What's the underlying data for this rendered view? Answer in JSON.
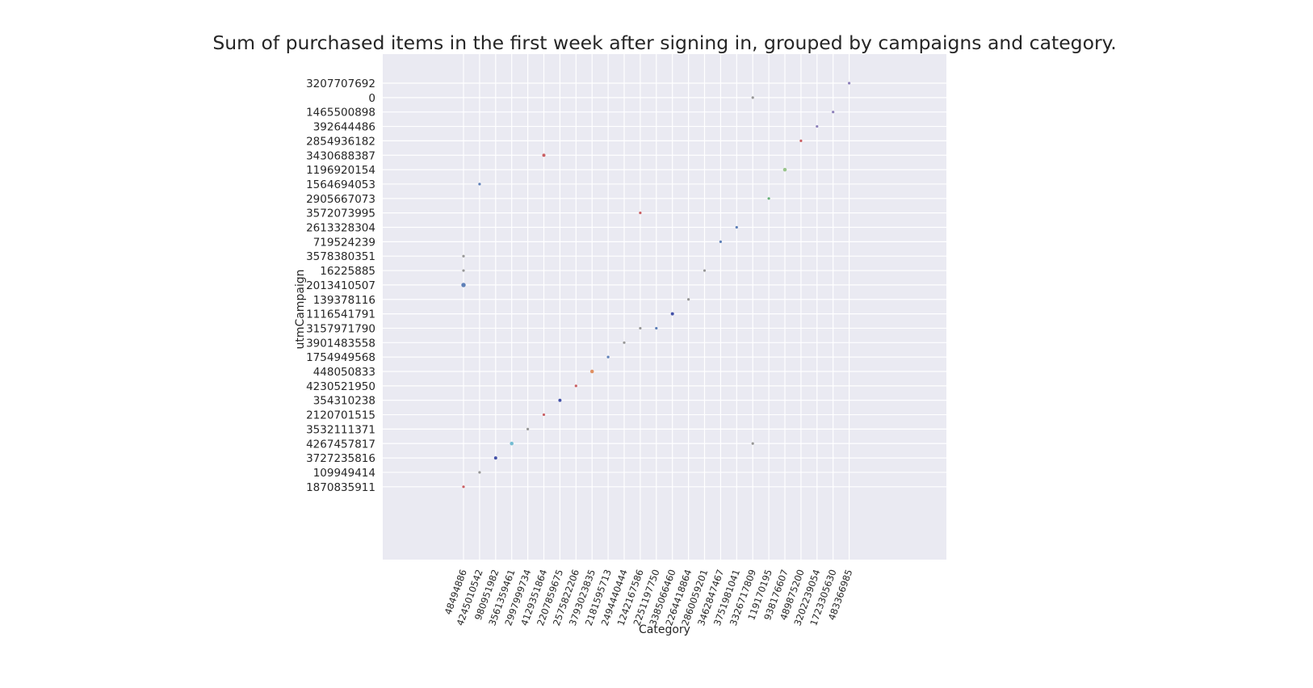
{
  "chart_data": {
    "type": "scatter",
    "title": "Sum of purchased items in the first week after signing in, grouped by campaigns and category.",
    "xlabel": "Category",
    "ylabel": "utmCampaign",
    "grid": true,
    "legend": "none",
    "style": {
      "background": "#eaeaf2",
      "grid_color": "#ffffff",
      "text_color": "#262626"
    },
    "categories": [
      "48494886",
      "4245010542",
      "980951982",
      "3561359461",
      "2997999734",
      "4129351864",
      "2207859675",
      "2575822206",
      "3793023835",
      "2181595713",
      "2494440444",
      "1242167586",
      "2251197750",
      "3385066460",
      "2264418864",
      "2860059201",
      "3462847467",
      "3751981041",
      "3326717809",
      "119170195",
      "938176607",
      "489875200",
      "3202239054",
      "1723305630",
      "483366985"
    ],
    "campaigns": [
      "3207707692",
      "0",
      "1465500898",
      "392644486",
      "2854936182",
      "3430688387",
      "1196920154",
      "1564694053",
      "2905667073",
      "3572073995",
      "2613328304",
      "719524239",
      "3578380351",
      "16225885",
      "2013410507",
      "139378116",
      "1116541791",
      "3157971790",
      "3901483558",
      "1754949568",
      "448050833",
      "4230521950",
      "354310238",
      "2120701515",
      "3532111371",
      "4267457817",
      "3727235816",
      "109949414",
      "1870835911"
    ],
    "points": [
      {
        "x": "483366985",
        "y": "3207707692",
        "value": 1,
        "color": "#8172b2"
      },
      {
        "x": "3326717809",
        "y": "0",
        "value": 1,
        "color": "#8c8c8c"
      },
      {
        "x": "1723305630",
        "y": "1465500898",
        "value": 1,
        "color": "#8172b2"
      },
      {
        "x": "3202239054",
        "y": "392644486",
        "value": 1,
        "color": "#8172b2"
      },
      {
        "x": "489875200",
        "y": "2854936182",
        "value": 1,
        "color": "#c44e52"
      },
      {
        "x": "4129351864",
        "y": "3430688387",
        "value": 2,
        "color": "#c44e52"
      },
      {
        "x": "938176607",
        "y": "1196920154",
        "value": 3,
        "color": "#8fbf7f"
      },
      {
        "x": "4245010542",
        "y": "1564694053",
        "value": 1,
        "color": "#4c72b0"
      },
      {
        "x": "119170195",
        "y": "2905667073",
        "value": 1,
        "color": "#55a868"
      },
      {
        "x": "1242167586",
        "y": "3572073995",
        "value": 1,
        "color": "#c44e52"
      },
      {
        "x": "3751981041",
        "y": "2613328304",
        "value": 1,
        "color": "#4c72b0"
      },
      {
        "x": "3462847467",
        "y": "719524239",
        "value": 1,
        "color": "#4c72b0"
      },
      {
        "x": "48494886",
        "y": "3578380351",
        "value": 1,
        "color": "#8c8c8c"
      },
      {
        "x": "48494886",
        "y": "16225885",
        "value": 1,
        "color": "#8c8c8c"
      },
      {
        "x": "48494886",
        "y": "2013410507",
        "value": 5,
        "color": "#4c72b0"
      },
      {
        "x": "2860059201",
        "y": "16225885",
        "value": 1,
        "color": "#8c8c8c"
      },
      {
        "x": "2264418864",
        "y": "139378116",
        "value": 1,
        "color": "#8c8c8c"
      },
      {
        "x": "3385066460",
        "y": "1116541791",
        "value": 2,
        "color": "#2f3e9e"
      },
      {
        "x": "1242167586",
        "y": "3157971790",
        "value": 1,
        "color": "#8c8c8c"
      },
      {
        "x": "2251197750",
        "y": "3157971790",
        "value": 1,
        "color": "#4c72b0"
      },
      {
        "x": "2494440444",
        "y": "3901483558",
        "value": 1,
        "color": "#8c8c8c"
      },
      {
        "x": "2181595713",
        "y": "1754949568",
        "value": 1,
        "color": "#4c72b0"
      },
      {
        "x": "3793023835",
        "y": "448050833",
        "value": 3,
        "color": "#dd8452"
      },
      {
        "x": "2575822206",
        "y": "4230521950",
        "value": 1,
        "color": "#c44e52"
      },
      {
        "x": "2207859675",
        "y": "354310238",
        "value": 2,
        "color": "#2f3e9e"
      },
      {
        "x": "4129351864",
        "y": "2120701515",
        "value": 1,
        "color": "#c44e52"
      },
      {
        "x": "2997999734",
        "y": "3532111371",
        "value": 1,
        "color": "#8c8c8c"
      },
      {
        "x": "3561359461",
        "y": "4267457817",
        "value": 3,
        "color": "#64b5cd"
      },
      {
        "x": "3326717809",
        "y": "4267457817",
        "value": 1,
        "color": "#8c8c8c"
      },
      {
        "x": "980951982",
        "y": "3727235816",
        "value": 2,
        "color": "#2f3e9e"
      },
      {
        "x": "4245010542",
        "y": "109949414",
        "value": 1,
        "color": "#8c8c8c"
      },
      {
        "x": "48494886",
        "y": "1870835911",
        "value": 1,
        "color": "#c44e52"
      }
    ]
  }
}
